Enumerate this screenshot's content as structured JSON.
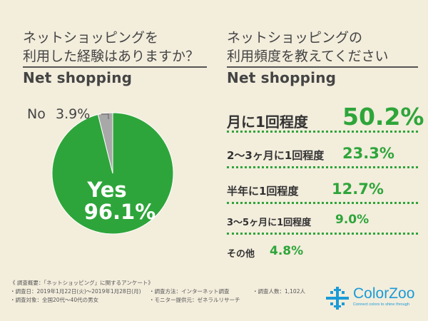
{
  "left": {
    "question_lines": [
      "ネットショッピングを",
      "利用した経験はありますか？"
    ],
    "subhead": "Net shopping"
  },
  "right": {
    "question_lines": [
      "ネットショッピングの",
      "利用頻度を教えてください"
    ],
    "subhead": "Net shopping"
  },
  "chart_data": [
    {
      "type": "pie",
      "title": "ネットショッピングを利用した経験はありますか？",
      "slices": [
        {
          "label": "Yes",
          "value": 96.1,
          "display": "96.1%",
          "color": "#2ea53a"
        },
        {
          "label": "No",
          "value": 3.9,
          "display": "3.9%",
          "color": "#a8a8a8"
        }
      ]
    },
    {
      "type": "bar",
      "title": "ネットショッピングの利用頻度を教えてください",
      "categories": [
        "月に1回程度",
        "2〜3ヶ月に1回程度",
        "半年に1回程度",
        "3〜5ヶ月に1回程度",
        "その他"
      ],
      "values": [
        50.2,
        23.3,
        12.7,
        9.0,
        4.8
      ],
      "value_labels": [
        "50.2%",
        "23.3%",
        "12.7%",
        "9.0%",
        "4.8%"
      ],
      "color": "#2ea53a"
    }
  ],
  "footnote": {
    "heading": "《 調査概要：「ネットショッピング」に関するアンケート》",
    "row1": [
      "・調査日：2019年1月22日(火)〜2019年1月28日(月)",
      "・調査方法：インターネット調査",
      "・調査人数：1,102人"
    ],
    "row2": [
      "・調査対象：全国20代〜40代の男女",
      "・モニター提供元：ゼネラルリサーチ"
    ]
  },
  "brand": {
    "name": "ColorZoo",
    "tagline": "Connect colors to shine through",
    "color": "#1a9bd7"
  }
}
